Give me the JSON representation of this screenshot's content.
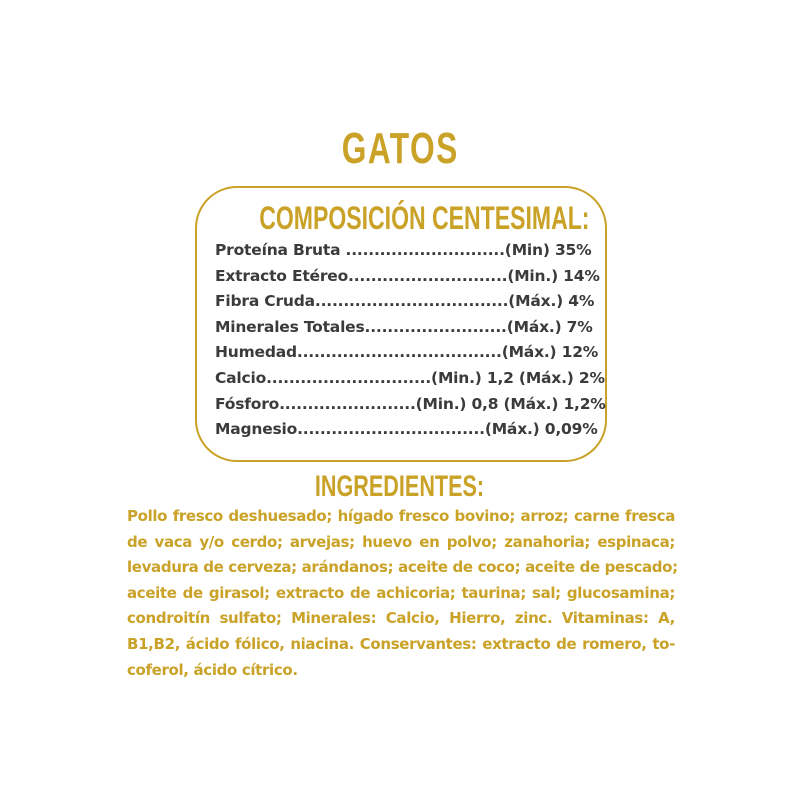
{
  "colors": {
    "accent": "#c9a227",
    "text": "#3b3b3b"
  },
  "title": "GATOS",
  "composition": {
    "heading": "COMPOSICIÓN CENTESIMAL:",
    "rows": [
      "Proteína Bruta ............................(Min) 35%",
      "Extracto Etéreo............................(Min.) 14%",
      "Fibra Cruda..................................(Máx.) 4%",
      "Minerales Totales.........................(Máx.) 7%",
      "Humedad....................................(Máx.) 12%",
      "Calcio.............................(Min.) 1,2 (Máx.) 2%",
      "Fósforo........................(Min.) 0,8 (Máx.) 1,2%",
      "Magnesio.................................(Máx.) 0,09%"
    ]
  },
  "ingredients": {
    "heading": "INGREDIENTES:",
    "lines": [
      "Pollo fresco deshuesado; hígado fresco bovino; arroz; carne fresca",
      "de vaca y/o cerdo; arvejas; huevo en polvo; zanahoria; espinaca;",
      "levadura de cerveza; arándanos; aceite de coco; aceite de pescado;",
      "aceite de girasol; extracto de achicoria; taurina; sal; glucosamina;",
      "condroitín sulfato; Minerales: Calcio, Hierro, zinc. Vitaminas: A,",
      "B1,B2, ácido fólico, niacina. Conservantes: extracto de romero, to-",
      "coferol, ácido cítrico."
    ]
  }
}
